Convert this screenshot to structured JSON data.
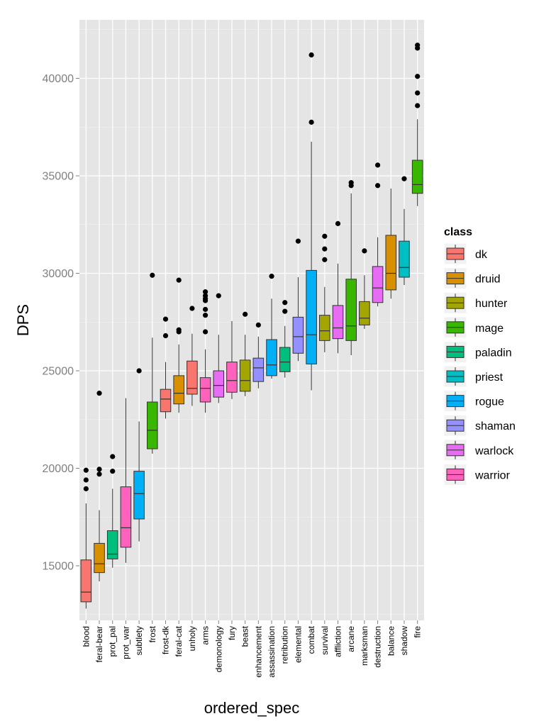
{
  "chart_data": {
    "type": "boxplot",
    "xlabel": "ordered_spec",
    "ylabel": "DPS",
    "ylim": [
      12200,
      43000
    ],
    "yticks": [
      15000,
      20000,
      25000,
      30000,
      35000,
      40000
    ],
    "ytick_labels": [
      "15000",
      "20000",
      "25000",
      "30000",
      "35000",
      "40000"
    ],
    "grid": true,
    "legend": {
      "title": "class",
      "position": "right",
      "entries": [
        {
          "name": "dk",
          "color": "#F8766D"
        },
        {
          "name": "druid",
          "color": "#D89000"
        },
        {
          "name": "hunter",
          "color": "#A3A500"
        },
        {
          "name": "mage",
          "color": "#39B600"
        },
        {
          "name": "paladin",
          "color": "#00BF7D"
        },
        {
          "name": "priest",
          "color": "#00BFC4"
        },
        {
          "name": "rogue",
          "color": "#00B0F6"
        },
        {
          "name": "shaman",
          "color": "#9590FF"
        },
        {
          "name": "warlock",
          "color": "#E76BF3"
        },
        {
          "name": "warrior",
          "color": "#FF62BC"
        }
      ]
    },
    "boxes": [
      {
        "spec": "blood",
        "class": "dk",
        "min": 12800,
        "q1": 13150,
        "median": 13650,
        "q3": 15300,
        "max": 18200,
        "outliers": [
          18950,
          19400,
          19900
        ]
      },
      {
        "spec": "feral-bear",
        "class": "druid",
        "min": 14200,
        "q1": 14650,
        "median": 15100,
        "q3": 16150,
        "max": 17850,
        "outliers": [
          19700,
          19950,
          23850
        ]
      },
      {
        "spec": "prot_pal",
        "class": "paladin",
        "min": 14900,
        "q1": 15350,
        "median": 15600,
        "q3": 16800,
        "max": 18950,
        "outliers": [
          19850,
          20600
        ]
      },
      {
        "spec": "prot_war",
        "class": "warrior",
        "min": 15150,
        "q1": 15950,
        "median": 16950,
        "q3": 19050,
        "max": 23600,
        "outliers": []
      },
      {
        "spec": "subtlety",
        "class": "rogue",
        "min": 16250,
        "q1": 17400,
        "median": 18700,
        "q3": 19850,
        "max": 22400,
        "outliers": [
          25000
        ]
      },
      {
        "spec": "frost",
        "class": "mage",
        "min": 20750,
        "q1": 21000,
        "median": 21950,
        "q3": 23400,
        "max": 26700,
        "outliers": [
          29900
        ]
      },
      {
        "spec": "frost-dk",
        "class": "dk",
        "min": 22550,
        "q1": 22900,
        "median": 23550,
        "q3": 24050,
        "max": 25450,
        "outliers": [
          26800,
          27650
        ]
      },
      {
        "spec": "feral-cat",
        "class": "druid",
        "min": 22850,
        "q1": 23300,
        "median": 23850,
        "q3": 24750,
        "max": 26350,
        "outliers": [
          27000,
          27100,
          29650
        ]
      },
      {
        "spec": "unholy",
        "class": "dk",
        "min": 23200,
        "q1": 23800,
        "median": 24100,
        "q3": 25500,
        "max": 26900,
        "outliers": [
          28200
        ]
      },
      {
        "spec": "arms",
        "class": "warrior",
        "min": 22850,
        "q1": 23400,
        "median": 24100,
        "q3": 24650,
        "max": 26100,
        "outliers": [
          27000,
          27850,
          28150,
          28600,
          28700,
          28850,
          29050
        ]
      },
      {
        "spec": "demonology",
        "class": "warlock",
        "min": 23350,
        "q1": 23650,
        "median": 24250,
        "q3": 25000,
        "max": 26850,
        "outliers": [
          28850
        ]
      },
      {
        "spec": "fury",
        "class": "warrior",
        "min": 23550,
        "q1": 23900,
        "median": 24500,
        "q3": 25450,
        "max": 27550,
        "outliers": []
      },
      {
        "spec": "beast",
        "class": "hunter",
        "min": 23700,
        "q1": 23950,
        "median": 24500,
        "q3": 25550,
        "max": 26850,
        "outliers": [
          27900
        ]
      },
      {
        "spec": "enhancement",
        "class": "shaman",
        "min": 24100,
        "q1": 24450,
        "median": 25150,
        "q3": 25650,
        "max": 26750,
        "outliers": [
          27350
        ]
      },
      {
        "spec": "assassination",
        "class": "rogue",
        "min": 24600,
        "q1": 24750,
        "median": 25300,
        "q3": 26600,
        "max": 28700,
        "outliers": [
          29850
        ]
      },
      {
        "spec": "retribution",
        "class": "paladin",
        "min": 24650,
        "q1": 24950,
        "median": 25450,
        "q3": 26200,
        "max": 27300,
        "outliers": [
          28050,
          28500
        ]
      },
      {
        "spec": "elemental",
        "class": "shaman",
        "min": 25500,
        "q1": 25900,
        "median": 26750,
        "q3": 27750,
        "max": 29800,
        "outliers": [
          31650
        ]
      },
      {
        "spec": "combat",
        "class": "rogue",
        "min": 24000,
        "q1": 25350,
        "median": 26850,
        "q3": 30150,
        "max": 36750,
        "outliers": [
          37750,
          41200
        ]
      },
      {
        "spec": "survival",
        "class": "hunter",
        "min": 25950,
        "q1": 26550,
        "median": 27050,
        "q3": 27850,
        "max": 29300,
        "outliers": [
          30700,
          31250,
          31900
        ]
      },
      {
        "spec": "affliction",
        "class": "warlock",
        "min": 25900,
        "q1": 26650,
        "median": 27200,
        "q3": 28350,
        "max": 30500,
        "outliers": [
          32550
        ]
      },
      {
        "spec": "arcane",
        "class": "mage",
        "min": 25800,
        "q1": 26550,
        "median": 27300,
        "q3": 29700,
        "max": 34100,
        "outliers": [
          34500,
          34650
        ]
      },
      {
        "spec": "marksman",
        "class": "hunter",
        "min": 27150,
        "q1": 27350,
        "median": 27700,
        "q3": 28550,
        "max": 29900,
        "outliers": [
          31150
        ]
      },
      {
        "spec": "destruction",
        "class": "warlock",
        "min": 28300,
        "q1": 28500,
        "median": 29250,
        "q3": 30350,
        "max": 31850,
        "outliers": [
          34500,
          35550
        ]
      },
      {
        "spec": "balance",
        "class": "druid",
        "min": 28700,
        "q1": 29150,
        "median": 30000,
        "q3": 31950,
        "max": 34350,
        "outliers": []
      },
      {
        "spec": "shadow",
        "class": "priest",
        "min": 29400,
        "q1": 29800,
        "median": 30300,
        "q3": 31650,
        "max": 33300,
        "outliers": [
          34850
        ]
      },
      {
        "spec": "fire",
        "class": "mage",
        "min": 33450,
        "q1": 34100,
        "median": 34550,
        "q3": 35800,
        "max": 37900,
        "outliers": [
          38600,
          39250,
          40100,
          41550,
          41700
        ]
      }
    ]
  }
}
